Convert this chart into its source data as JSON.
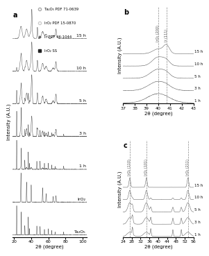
{
  "title_a": "a",
  "title_b": "b",
  "title_c": "c",
  "legend_items": [
    {
      "label": "Ta₂O₅ PDF 71-0639",
      "marker": "o",
      "color": "#aaaaaa",
      "ms": 3,
      "mfc": "none"
    },
    {
      "label": "IrO₂ PDF 15-0870",
      "marker": "o",
      "color": "#cccccc",
      "ms": 3,
      "mfc": "none"
    },
    {
      "label": "Ir PDF 46-1044",
      "marker": "+",
      "color": "#444444",
      "ms": 3,
      "mfc": "none"
    },
    {
      "label": "IrO₂ SS",
      "marker": "s",
      "color": "#222222",
      "ms": 2.5,
      "mfc": "#222222"
    }
  ],
  "panel_a": {
    "xlabel": "2θ (degree)",
    "ylabel": "Intensity (A.U.)",
    "xlim": [
      18,
      105
    ],
    "traces": [
      "Ta₂O₅",
      "IrO₂",
      "1 h",
      "3 h",
      "5 h",
      "10 h",
      "15 h"
    ],
    "x_ticks": [
      20,
      40,
      60,
      80,
      100
    ]
  },
  "panel_b": {
    "xlabel": "2θ (degree)",
    "ylabel": "Intensity (A.U.)",
    "xlim": [
      37,
      43
    ],
    "dashed_lines": [
      40.0,
      40.7
    ],
    "dashed_labels": [
      "IrO₂ (200)",
      "Ir (111)"
    ],
    "traces": [
      "1 h",
      "3 h",
      "5 h",
      "10 h",
      "15 h"
    ],
    "x_ticks": [
      37,
      38,
      39,
      40,
      41,
      42,
      43
    ]
  },
  "panel_c": {
    "xlabel": "2θ (degree)",
    "ylabel": "Intensity (A.U.)",
    "xlim": [
      24,
      56
    ],
    "dashed_lines": [
      27.1,
      34.6,
      53.4
    ],
    "dashed_labels": [
      "IrO₂ (110)",
      "IrO₂ (101)",
      "IrO₂ (211)"
    ],
    "traces": [
      "1 h",
      "3 h",
      "5 h",
      "10 h",
      "15 h"
    ],
    "x_ticks": [
      24,
      28,
      32,
      36,
      40,
      44,
      48,
      52,
      56
    ]
  },
  "line_color": "#555555",
  "bg_color": "#ffffff",
  "fontsize": 5,
  "tick_fontsize": 4.5
}
